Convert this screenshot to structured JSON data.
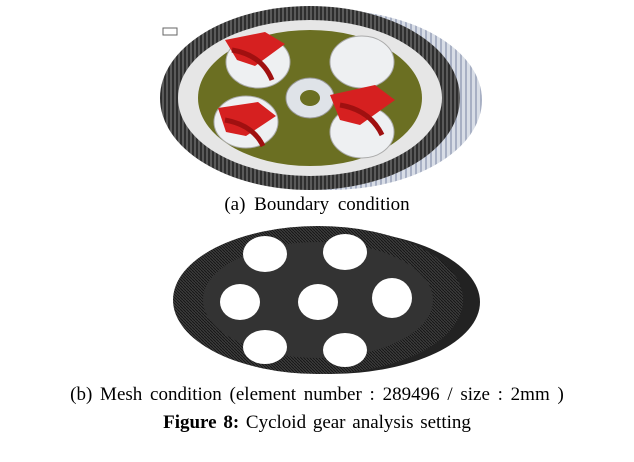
{
  "figure": {
    "subfigures": [
      {
        "caption": "(a) Boundary condition"
      },
      {
        "caption": "(b) Mesh condition (element number : 289496 / size : 2mm )"
      }
    ],
    "label": "Figure 8:",
    "caption": "Cycloid gear analysis setting"
  }
}
